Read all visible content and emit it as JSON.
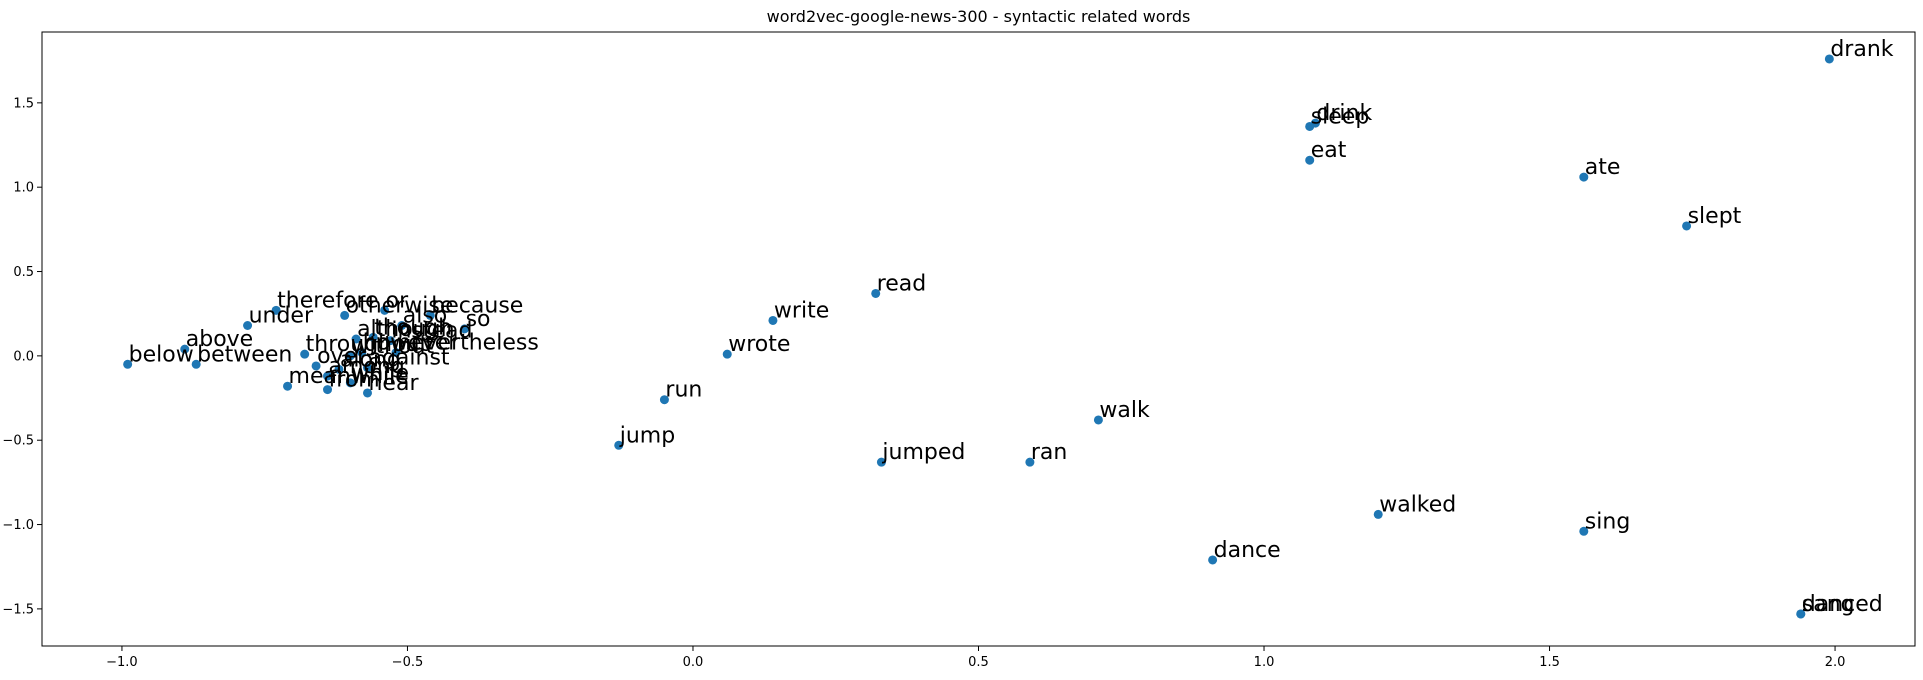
{
  "chart_data": {
    "type": "scatter",
    "title": "word2vec-google-news-300 - syntactic related words",
    "xlabel": "",
    "ylabel": "",
    "xlim": [
      -1.14,
      2.14
    ],
    "ylim": [
      -1.72,
      1.92
    ],
    "x_ticks": [
      -1.0,
      -0.5,
      0.0,
      0.5,
      1.0,
      1.5,
      2.0
    ],
    "x_tick_labels": [
      "−1.0",
      "−0.5",
      "0.0",
      "0.5",
      "1.0",
      "1.5",
      "2.0"
    ],
    "y_ticks": [
      -1.5,
      -1.0,
      -0.5,
      0.0,
      0.5,
      1.0,
      1.5
    ],
    "y_tick_labels": [
      "−1.5",
      "−1.0",
      "−0.5",
      "0.0",
      "0.5",
      "1.0",
      "1.5"
    ],
    "grid": false,
    "marker_color": "#1f77b4",
    "points": [
      {
        "label": "drank",
        "x": 1.99,
        "y": 1.76
      },
      {
        "label": "drink",
        "x": 1.09,
        "y": 1.38
      },
      {
        "label": "sleep",
        "x": 1.08,
        "y": 1.36
      },
      {
        "label": "eat",
        "x": 1.08,
        "y": 1.16
      },
      {
        "label": "ate",
        "x": 1.56,
        "y": 1.06
      },
      {
        "label": "slept",
        "x": 1.74,
        "y": 0.77
      },
      {
        "label": "read",
        "x": 0.32,
        "y": 0.37
      },
      {
        "label": "write",
        "x": 0.14,
        "y": 0.21
      },
      {
        "label": "wrote",
        "x": 0.06,
        "y": 0.01
      },
      {
        "label": "run",
        "x": -0.05,
        "y": -0.26
      },
      {
        "label": "jump",
        "x": -0.13,
        "y": -0.53
      },
      {
        "label": "jumped",
        "x": 0.33,
        "y": -0.63
      },
      {
        "label": "ran",
        "x": 0.59,
        "y": -0.63
      },
      {
        "label": "walk",
        "x": 0.71,
        "y": -0.38
      },
      {
        "label": "walked",
        "x": 1.2,
        "y": -0.94
      },
      {
        "label": "sing",
        "x": 1.56,
        "y": -1.04
      },
      {
        "label": "dance",
        "x": 0.91,
        "y": -1.21
      },
      {
        "label": "sang",
        "x": 1.94,
        "y": -1.53
      },
      {
        "label": "danced",
        "x": 1.94,
        "y": -1.53
      },
      {
        "label": "below",
        "x": -0.99,
        "y": -0.05
      },
      {
        "label": "above",
        "x": -0.89,
        "y": 0.04
      },
      {
        "label": "between",
        "x": -0.87,
        "y": -0.05
      },
      {
        "label": "under",
        "x": -0.78,
        "y": 0.18
      },
      {
        "label": "therefore",
        "x": -0.73,
        "y": 0.27
      },
      {
        "label": "otherwise",
        "x": -0.61,
        "y": 0.24
      },
      {
        "label": "or",
        "x": -0.54,
        "y": 0.27
      },
      {
        "label": "because",
        "x": -0.46,
        "y": 0.24
      },
      {
        "label": "also",
        "x": -0.51,
        "y": 0.18
      },
      {
        "label": "so",
        "x": -0.4,
        "y": 0.16
      },
      {
        "label": "although",
        "x": -0.59,
        "y": 0.1
      },
      {
        "label": "though",
        "x": -0.56,
        "y": 0.11
      },
      {
        "label": "instead",
        "x": -0.53,
        "y": 0.09
      },
      {
        "label": "nevertheless",
        "x": -0.52,
        "y": 0.02
      },
      {
        "label": "throughout",
        "x": -0.68,
        "y": 0.01
      },
      {
        "label": "however",
        "x": -0.58,
        "y": 0.02
      },
      {
        "label": "without",
        "x": -0.6,
        "y": 0.0
      },
      {
        "label": "over",
        "x": -0.66,
        "y": -0.06
      },
      {
        "label": "along",
        "x": -0.62,
        "y": -0.08
      },
      {
        "label": "against",
        "x": -0.57,
        "y": -0.07
      },
      {
        "label": "among",
        "x": -0.64,
        "y": -0.12
      },
      {
        "label": "meanwhile",
        "x": -0.71,
        "y": -0.18
      },
      {
        "label": "from",
        "x": -0.64,
        "y": -0.2
      },
      {
        "label": "while",
        "x": -0.6,
        "y": -0.16
      },
      {
        "label": "near",
        "x": -0.57,
        "y": -0.22
      }
    ]
  }
}
